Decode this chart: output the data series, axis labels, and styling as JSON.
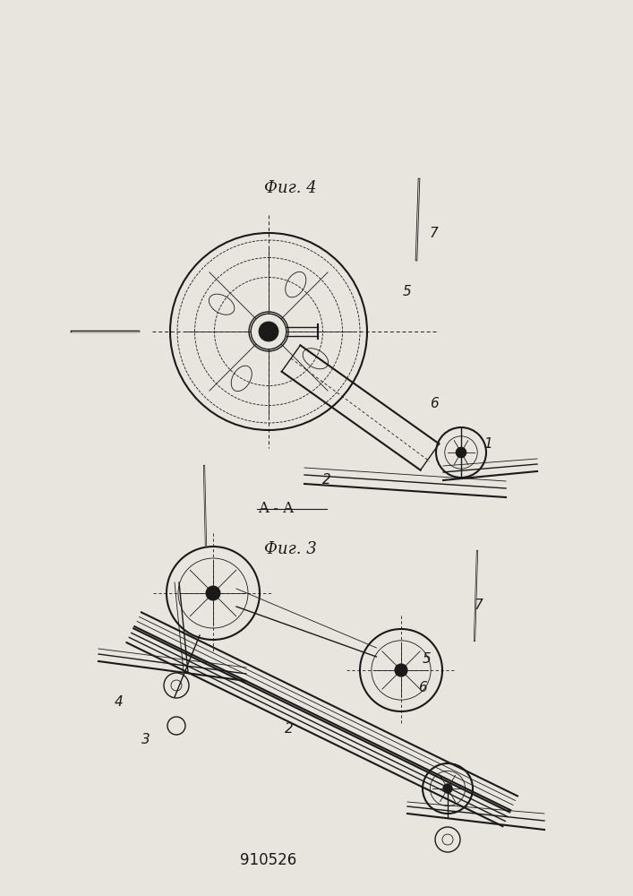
{
  "title": "910526",
  "fig3_label": "Фиг. 3",
  "fig4_label": "Фиг. 4",
  "section_label": "A - A",
  "bg_color": "#e8e5df",
  "line_color": "#1a1a1a",
  "figsize": [
    7.07,
    10.0
  ],
  "dpi": 100
}
